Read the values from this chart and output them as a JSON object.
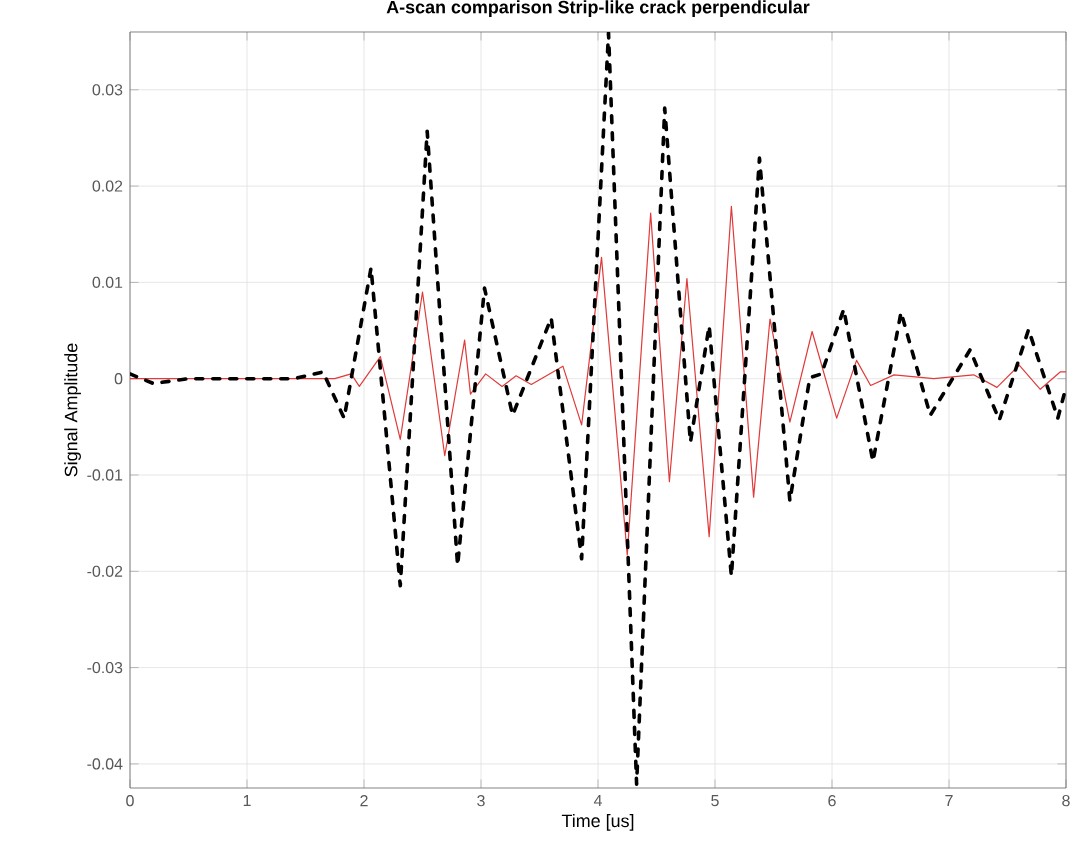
{
  "chart_data": {
    "type": "line",
    "title": "A-scan comparison Strip-like crack perpendicular",
    "xlabel": "Time [us]",
    "ylabel": "Signal Amplitude",
    "xlim": [
      0,
      8
    ],
    "ylim": [
      -0.0425,
      0.036
    ],
    "xticks": [
      0,
      1,
      2,
      3,
      4,
      5,
      6,
      7,
      8
    ],
    "yticks": [
      -0.04,
      -0.03,
      -0.02,
      -0.01,
      0,
      0.01,
      0.02,
      0.03
    ],
    "grid": true,
    "series": [
      {
        "color": "#e03a3a",
        "line_style": "solid",
        "x": [
          0,
          0.5,
          1,
          1.5,
          1.75,
          1.89,
          1.96,
          2.14,
          2.31,
          2.5,
          2.69,
          2.86,
          2.91,
          3.04,
          3.18,
          3.3,
          3.43,
          3.7,
          3.86,
          4.03,
          4.25,
          4.45,
          4.61,
          4.76,
          4.95,
          5.14,
          5.33,
          5.47,
          5.64,
          5.83,
          6.04,
          6.21,
          6.33,
          6.53,
          6.87,
          7.21,
          7.41,
          7.6,
          7.78,
          7.95,
          8
        ],
        "values": [
          0,
          0,
          0,
          0,
          0,
          0.0005,
          -0.0008,
          0.0023,
          -0.0063,
          0.009,
          -0.008,
          0.004,
          -0.0016,
          0.0005,
          -0.0008,
          0.0003,
          -0.0006,
          0.0013,
          -0.0048,
          0.0126,
          -0.0183,
          0.0172,
          -0.0107,
          0.0104,
          -0.0164,
          0.0179,
          -0.0123,
          0.0062,
          -0.0045,
          0.0049,
          -0.0041,
          0.0019,
          -0.0007,
          0.0004,
          0,
          0.0004,
          -0.0009,
          0.0014,
          -0.0011,
          0.0007,
          0.0007
        ]
      },
      {
        "color": "#000000",
        "line_style": "dashed",
        "x": [
          0,
          0.2,
          0.5,
          1,
          1.4,
          1.65,
          1.83,
          2.06,
          2.31,
          2.54,
          2.8,
          3.03,
          3.27,
          3.6,
          3.86,
          4.09,
          4.33,
          4.57,
          4.79,
          4.95,
          5.14,
          5.38,
          5.64,
          5.81,
          5.91,
          6.1,
          6.35,
          6.59,
          6.84,
          7.18,
          7.43,
          7.68,
          7.93,
          8
        ],
        "values": [
          0.0005,
          -0.0005,
          0,
          0,
          0,
          0.0007,
          -0.0041,
          0.0115,
          -0.0215,
          0.0257,
          -0.0194,
          0.0094,
          -0.0038,
          0.0063,
          -0.0187,
          0.0359,
          -0.0421,
          0.0281,
          -0.0066,
          0.0055,
          -0.0205,
          0.0229,
          -0.0127,
          0.0001,
          0.0005,
          0.0072,
          -0.0086,
          0.0069,
          -0.0038,
          0.003,
          -0.0043,
          0.0051,
          -0.0041,
          -0.0009
        ]
      }
    ]
  }
}
